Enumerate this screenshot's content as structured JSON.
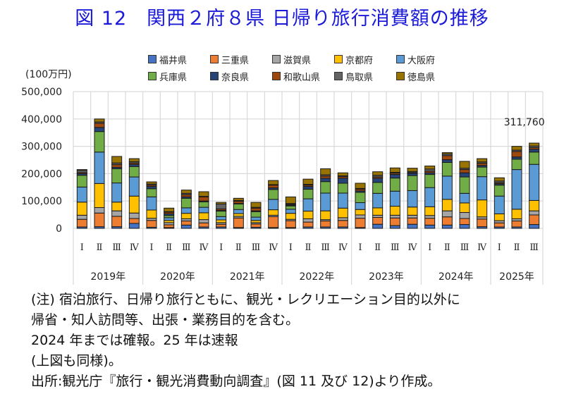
{
  "title": "図 12　関西２府８県 日帰り旅行消費額の推移",
  "chart_data": {
    "type": "bar",
    "stacked": true,
    "title": "図 12　関西２府８県 日帰り旅行消費額の推移",
    "ylabel": "(100万円)",
    "xlabel": "",
    "ylim": [
      0,
      500000
    ],
    "yticks": [
      0,
      100000,
      200000,
      300000,
      400000,
      500000
    ],
    "ytick_labels": [
      "0",
      "100,000",
      "200,000",
      "300,000",
      "400,000",
      "500,000"
    ],
    "grid": true,
    "legend_position": "top",
    "quarter_labels": [
      "Ⅰ",
      "Ⅱ",
      "Ⅲ",
      "Ⅳ",
      "Ⅰ",
      "Ⅱ",
      "Ⅲ",
      "Ⅳ",
      "Ⅰ",
      "Ⅱ",
      "Ⅲ",
      "Ⅳ",
      "Ⅰ",
      "Ⅱ",
      "Ⅲ",
      "Ⅳ",
      "Ⅰ",
      "Ⅱ",
      "Ⅲ",
      "Ⅳ",
      "Ⅰ",
      "Ⅱ",
      "Ⅲ",
      "Ⅳ",
      "Ⅰ",
      "Ⅱ",
      "Ⅲ"
    ],
    "year_groups": [
      {
        "label": "2019年",
        "count": 4
      },
      {
        "label": "2020年",
        "count": 4
      },
      {
        "label": "2021年",
        "count": 4
      },
      {
        "label": "2022年",
        "count": 4
      },
      {
        "label": "2023年",
        "count": 4
      },
      {
        "label": "2024年",
        "count": 4
      },
      {
        "label": "2025年",
        "count": 3
      }
    ],
    "annotation": {
      "text": "311,760",
      "index": 26
    },
    "series": [
      {
        "name": "福井県",
        "color": "#4472c4",
        "values": [
          5000,
          6000,
          6000,
          18000,
          4000,
          3000,
          12000,
          5000,
          5000,
          3000,
          4000,
          3000,
          3000,
          5000,
          5000,
          5000,
          3000,
          15000,
          10000,
          15000,
          12000,
          12000,
          14000,
          6000,
          5000,
          5000,
          14000
        ]
      },
      {
        "name": "三重県",
        "color": "#ed7d31",
        "values": [
          28000,
          50000,
          38000,
          18000,
          25000,
          10000,
          15000,
          15000,
          10000,
          35000,
          12000,
          40000,
          25000,
          18000,
          22000,
          24000,
          34000,
          25000,
          28000,
          23000,
          25000,
          30000,
          22000,
          28000,
          15000,
          22000,
          35000
        ]
      },
      {
        "name": "滋賀県",
        "color": "#a5a5a5",
        "values": [
          15000,
          20000,
          20000,
          20000,
          8000,
          8000,
          8000,
          12000,
          6000,
          6000,
          5000,
          5000,
          5000,
          12000,
          5000,
          10000,
          12000,
          8000,
          10000,
          10000,
          10000,
          22000,
          22000,
          8000,
          8000,
          8000,
          15000
        ]
      },
      {
        "name": "京都府",
        "color": "#ffc000",
        "values": [
          48000,
          88000,
          32000,
          62000,
          30000,
          8000,
          20000,
          25000,
          10000,
          10000,
          8000,
          20000,
          22000,
          28000,
          32000,
          35000,
          20000,
          27000,
          33000,
          30000,
          32000,
          42000,
          35000,
          62000,
          25000,
          35000,
          38000
        ]
      },
      {
        "name": "大阪府",
        "color": "#5b9bd5",
        "values": [
          55000,
          115000,
          70000,
          70000,
          48000,
          10000,
          20000,
          20000,
          12000,
          15000,
          12000,
          38000,
          15000,
          45000,
          65000,
          55000,
          25000,
          53000,
          55000,
          60000,
          70000,
          85000,
          35000,
          85000,
          65000,
          145000,
          132000
        ]
      },
      {
        "name": "兵庫県",
        "color": "#70ad47",
        "values": [
          43000,
          75000,
          52000,
          38000,
          30000,
          8000,
          35000,
          20000,
          20000,
          20000,
          20000,
          36000,
          12000,
          35000,
          42000,
          36000,
          38000,
          40000,
          48000,
          55000,
          48000,
          50000,
          60000,
          35000,
          40000,
          38000,
          45000
        ]
      },
      {
        "name": "奈良県",
        "color": "#264478",
        "values": [
          6000,
          15000,
          5000,
          8000,
          8000,
          6000,
          5000,
          3000,
          3000,
          2000,
          3000,
          6000,
          3000,
          10000,
          12000,
          18000,
          5000,
          15000,
          13000,
          8000,
          6000,
          10000,
          15000,
          6000,
          5000,
          8000,
          10000
        ]
      },
      {
        "name": "和歌山県",
        "color": "#9e480e",
        "values": [
          4000,
          15000,
          10000,
          5000,
          5000,
          6000,
          8000,
          15000,
          5000,
          8000,
          10000,
          10000,
          3000,
          5000,
          8000,
          6000,
          6000,
          5000,
          5000,
          3000,
          6000,
          15000,
          12000,
          8000,
          4000,
          20000,
          6000
        ]
      },
      {
        "name": "鳥取県",
        "color": "#636363",
        "values": [
          8000,
          5000,
          6000,
          5000,
          4000,
          2000,
          5000,
          2000,
          18000,
          3000,
          3000,
          2000,
          3000,
          3000,
          5000,
          3000,
          3000,
          6000,
          3000,
          4000,
          8000,
          6000,
          5000,
          5000,
          6000,
          5000,
          6000
        ]
      },
      {
        "name": "徳島県",
        "color": "#997300",
        "values": [
          3000,
          11000,
          24000,
          11000,
          8000,
          13000,
          12000,
          17000,
          6000,
          8000,
          18000,
          15000,
          24000,
          19000,
          22000,
          11000,
          19000,
          13000,
          16000,
          12000,
          11000,
          5000,
          25000,
          12000,
          12000,
          14000,
          10760
        ]
      }
    ]
  },
  "notes": [
    "(注) 宿泊旅行、日帰り旅行ともに、観光・レクリエーション目的以外に",
    "帰省・知人訪問等、出張・業務目的を含む。",
    "2024 年までは確報。25 年は速報",
    "(上図も同様)。",
    "出所:観光庁『旅行・観光消費動向調査』(図 11 及び 12)より作成。"
  ]
}
